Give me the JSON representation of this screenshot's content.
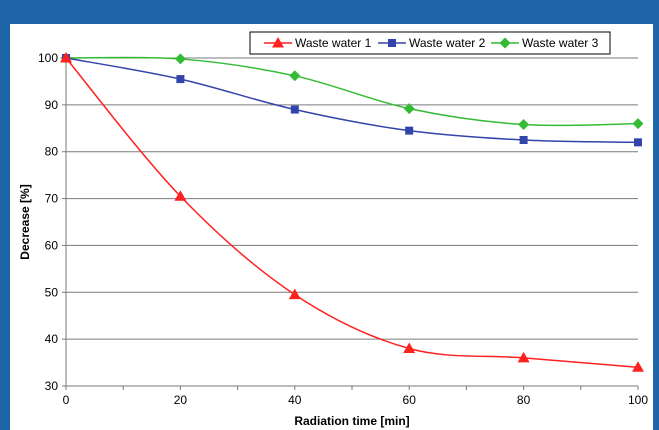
{
  "chart_data": {
    "type": "line",
    "title": "",
    "xlabel": "Radiation time [min]",
    "ylabel": "Decrease [%]",
    "xlim": [
      0,
      100
    ],
    "ylim": [
      30,
      100
    ],
    "x_ticks": [
      0,
      20,
      40,
      60,
      80,
      100
    ],
    "x_tick_labels": [
      "0",
      "20",
      "40",
      "60",
      "80",
      "100"
    ],
    "y_ticks": [
      30,
      40,
      50,
      60,
      70,
      80,
      90,
      100
    ],
    "y_tick_labels": [
      "30",
      "40",
      "50",
      "60",
      "70",
      "80",
      "90",
      "100"
    ],
    "grid": "horizontal",
    "legend_placement": "top-right",
    "series": [
      {
        "name": "Waste water 1",
        "color": "#ff2020",
        "marker": "triangle",
        "x": [
          0,
          20,
          40,
          60,
          80,
          100
        ],
        "values": [
          100,
          70.5,
          49.5,
          38,
          36,
          34
        ]
      },
      {
        "name": "Waste water 2",
        "color": "#3344aa",
        "marker": "square",
        "x": [
          0,
          20,
          40,
          60,
          80,
          100
        ],
        "values": [
          100,
          95.5,
          89,
          84.5,
          82.5,
          82
        ]
      },
      {
        "name": "Waste water 3",
        "color": "#33bb33",
        "marker": "diamond",
        "x": [
          0,
          20,
          40,
          60,
          80,
          100
        ],
        "values": [
          100,
          99.8,
          96.2,
          89.2,
          85.8,
          86
        ]
      }
    ]
  }
}
